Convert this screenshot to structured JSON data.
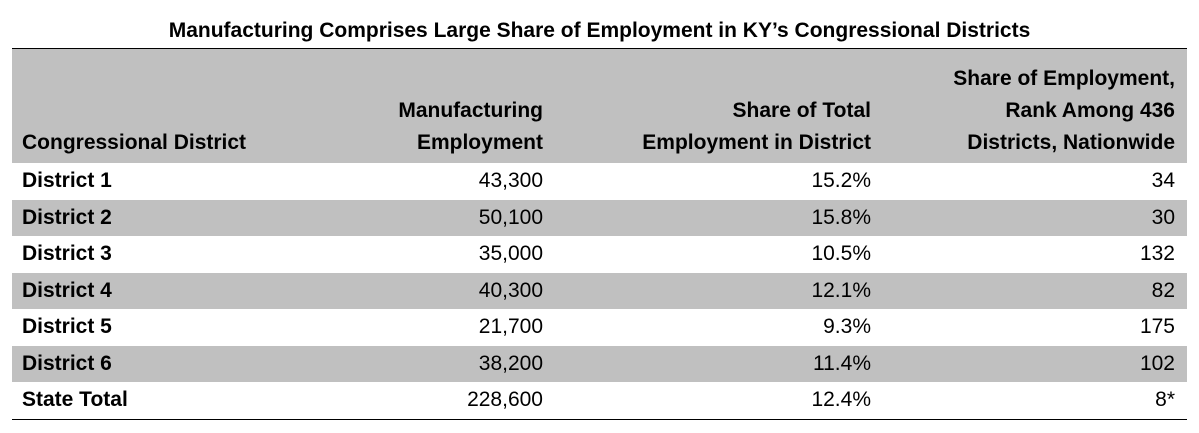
{
  "title": "Manufacturing Comprises Large Share of Employment in KY’s Congressional Districts",
  "columns": [
    [
      "Congressional District"
    ],
    [
      "Manufacturing",
      "Employment"
    ],
    [
      "Share of Total",
      "Employment in District"
    ],
    [
      "Share of Employment,",
      "Rank Among 436",
      "Districts, Nationwide"
    ]
  ],
  "rows": [
    [
      "District 1",
      "43,300",
      "15.2%",
      "34"
    ],
    [
      "District 2",
      "50,100",
      "15.8%",
      "30"
    ],
    [
      "District 3",
      "35,000",
      "10.5%",
      "132"
    ],
    [
      "District 4",
      "40,300",
      "12.1%",
      "82"
    ],
    [
      "District 5",
      "21,700",
      "9.3%",
      "175"
    ],
    [
      "District 6",
      "38,200",
      "11.4%",
      "102"
    ],
    [
      "State Total",
      "228,600",
      "12.4%",
      "8*"
    ]
  ]
}
